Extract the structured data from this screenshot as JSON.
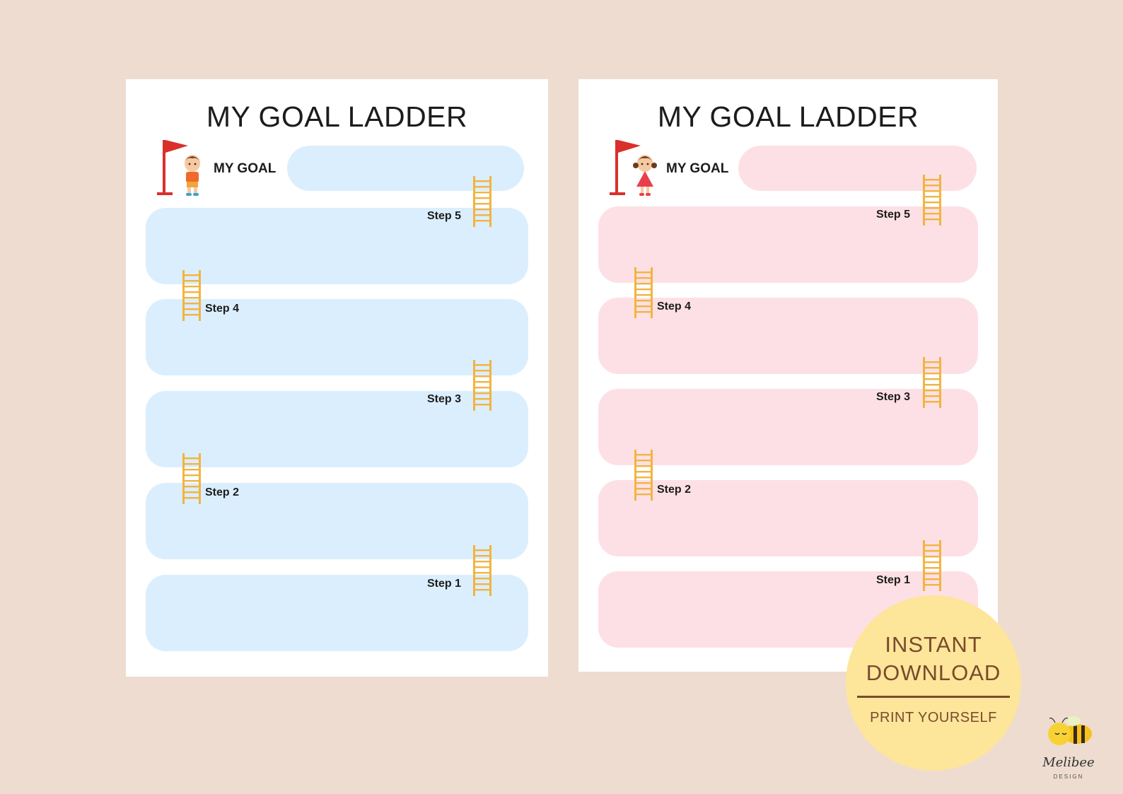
{
  "sheets": [
    {
      "title": "MY GOAL LADDER",
      "goal_label": "MY GOAL",
      "theme": "blue",
      "box_color": "#dbeefd",
      "character": "boy-icon",
      "steps": [
        "Step 5",
        "Step 4",
        "Step 3",
        "Step 2",
        "Step 1"
      ]
    },
    {
      "title": "MY GOAL LADDER",
      "goal_label": "MY GOAL",
      "theme": "pink",
      "box_color": "#fde0e5",
      "character": "girl-icon",
      "steps": [
        "Step 5",
        "Step 4",
        "Step 3",
        "Step 2",
        "Step 1"
      ]
    }
  ],
  "badge": {
    "line1": "INSTANT",
    "line2": "DOWNLOAD",
    "sub": "PRINT YOURSELF",
    "color": "#fde59a",
    "text_color": "#7a4a2c"
  },
  "brand": {
    "name": "Melibee",
    "sub": "DESIGN",
    "icon": "bee-icon"
  },
  "colors": {
    "background": "#eedcd0",
    "ladder": "#f2b441",
    "flag": "#d9302c"
  }
}
